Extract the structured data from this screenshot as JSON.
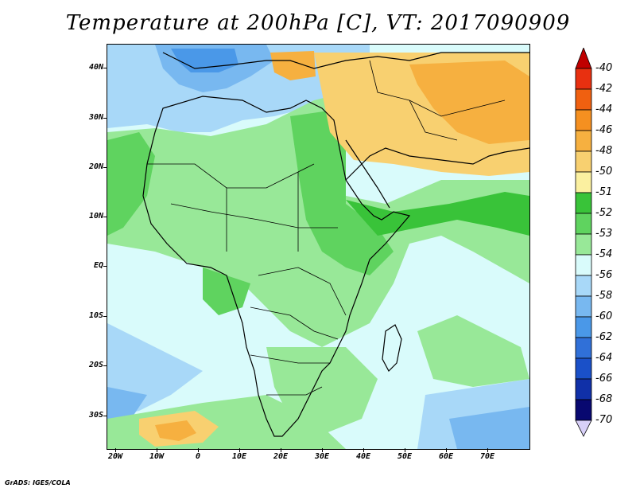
{
  "title": "Temperature at 200hPa [C], VT: 2017090909",
  "footer": "GrADS: IGES/COLA",
  "lat_labels": [
    "40N",
    "30N",
    "20N",
    "10N",
    "EQ",
    "10S",
    "20S",
    "30S"
  ],
  "lon_labels": [
    "20W",
    "10W",
    "0",
    "10E",
    "20E",
    "30E",
    "40E",
    "50E",
    "60E",
    "70E"
  ],
  "legend": {
    "labels": [
      "-40",
      "-42",
      "-44",
      "-46",
      "-48",
      "-50",
      "-51",
      "-52",
      "-53",
      "-54",
      "-56",
      "-58",
      "-60",
      "-62",
      "-64",
      "-66",
      "-68",
      "-70"
    ],
    "colors": [
      "#c00000",
      "#e83010",
      "#f06010",
      "#f59020",
      "#f6b040",
      "#f8d070",
      "#fbf0a0",
      "#39c339",
      "#5fd35f",
      "#98e898",
      "#d9fbfb",
      "#a8d8f8",
      "#78b8f0",
      "#4a98e8",
      "#3070d8",
      "#1a50c8",
      "#1030a8",
      "#080870",
      "#d8d0f8"
    ]
  },
  "colors": {
    "ocean_bg": "#d9fbfb",
    "warm_fill": "#f8d070",
    "warmer_fill": "#f6b040",
    "green_light": "#98e898",
    "green_mid": "#5fd35f",
    "green_dark": "#39c339",
    "blue_light": "#a8d8f8",
    "blue_mid": "#78b8f0",
    "blue_dark": "#4a98e8"
  }
}
